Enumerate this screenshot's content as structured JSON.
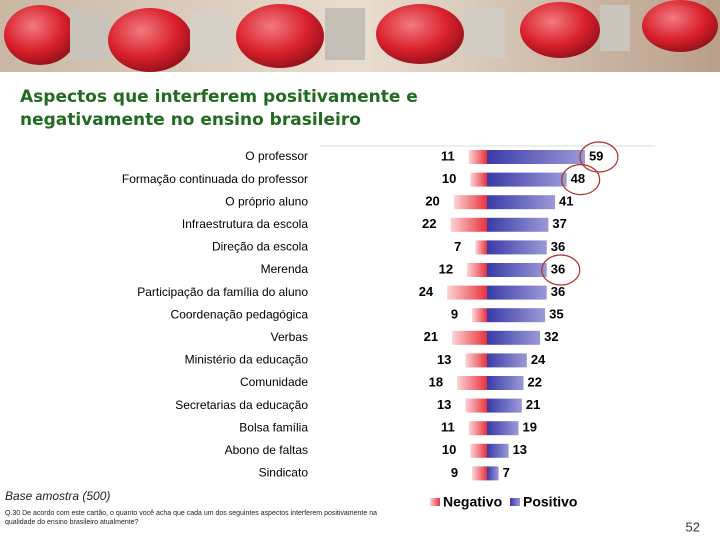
{
  "chart_data": {
    "type": "diverging-bar",
    "title": "Aspectos que interferem positivamente e negativamente no ensino brasileiro",
    "categories": [
      "O professor",
      "Formação continuada do professor",
      "O próprio aluno",
      "Infraestrutura da escola",
      "Direção da escola",
      "Merenda",
      "Participação da família do aluno",
      "Coordenação pedagógica",
      "Verbas",
      "Ministério da educação",
      "Comunidade",
      "Secretarias da educação",
      "Bolsa família",
      "Abono de faltas",
      "Sindicato"
    ],
    "series": [
      {
        "name": "Negativo",
        "color": "#e8323c",
        "values": [
          11,
          10,
          20,
          22,
          7,
          12,
          24,
          9,
          21,
          13,
          18,
          13,
          11,
          10,
          9
        ]
      },
      {
        "name": "Positivo",
        "color": "#3a3aa8",
        "values": [
          59,
          48,
          41,
          37,
          36,
          36,
          36,
          35,
          32,
          24,
          22,
          21,
          19,
          13,
          7
        ]
      }
    ]
  },
  "footer": {
    "sample": "Base amostra (500)",
    "question": "Q.30 De acordo com este cartão, o quanto você acha que cada um dos seguintes aspectos interferem positivamente na qualidade do ensino brasileiro atualmente?",
    "page_number": "52"
  }
}
